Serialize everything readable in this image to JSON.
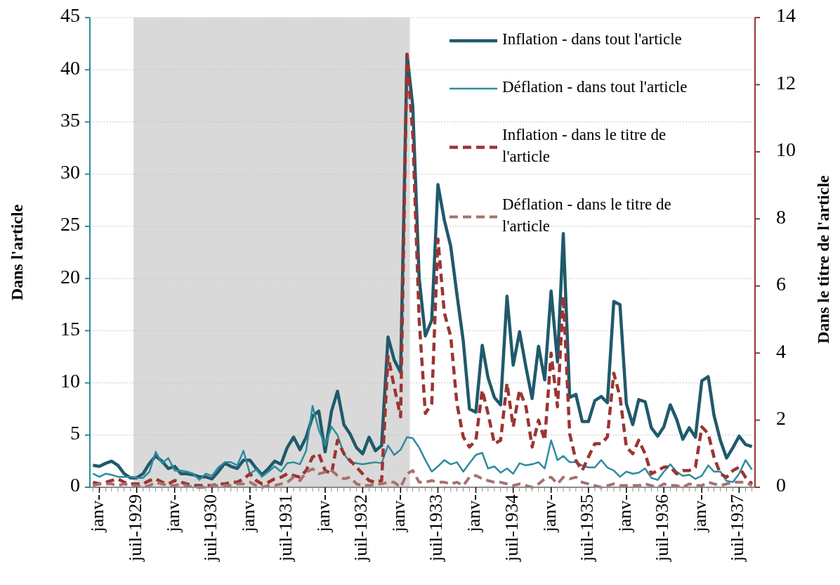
{
  "chart_data": {
    "type": "line",
    "ylabel": "Dans l'article",
    "y2label": "Dans le titre de l'article",
    "x": [
      "1928-12",
      "1929-01",
      "1929-02",
      "1929-03",
      "1929-04",
      "1929-05",
      "1929-06",
      "1929-07",
      "1929-08",
      "1929-09",
      "1929-10",
      "1929-11",
      "1929-12",
      "1930-01",
      "1930-02",
      "1930-03",
      "1930-04",
      "1930-05",
      "1930-06",
      "1930-07",
      "1930-08",
      "1930-09",
      "1930-10",
      "1930-11",
      "1930-12",
      "1931-01",
      "1931-02",
      "1931-03",
      "1931-04",
      "1931-05",
      "1931-06",
      "1931-07",
      "1931-08",
      "1931-09",
      "1931-10",
      "1931-11",
      "1931-12",
      "1932-01",
      "1932-02",
      "1932-03",
      "1932-04",
      "1932-05",
      "1932-06",
      "1932-07",
      "1932-08",
      "1932-09",
      "1932-10",
      "1932-11",
      "1932-12",
      "1933-01",
      "1933-02",
      "1933-03",
      "1933-04",
      "1933-05",
      "1933-06",
      "1933-07",
      "1933-08",
      "1933-09",
      "1933-10",
      "1933-11",
      "1933-12",
      "1934-01",
      "1934-02",
      "1934-03",
      "1934-04",
      "1934-05",
      "1934-06",
      "1934-07",
      "1934-08",
      "1934-09",
      "1934-10",
      "1934-11",
      "1934-12",
      "1935-01",
      "1935-02",
      "1935-03",
      "1935-04",
      "1935-05",
      "1935-06",
      "1935-07",
      "1935-08",
      "1935-09",
      "1935-10",
      "1935-11",
      "1935-12",
      "1936-01",
      "1936-02",
      "1936-03",
      "1936-04",
      "1936-05",
      "1936-06",
      "1936-07",
      "1936-08",
      "1936-09",
      "1936-10",
      "1936-11",
      "1936-12",
      "1937-01",
      "1937-02",
      "1937-03",
      "1937-04",
      "1937-05",
      "1937-06",
      "1937-07",
      "1937-08",
      "1937-09"
    ],
    "series": [
      {
        "name": "Inflation - dans tout l'article",
        "color": "#1f5a6b",
        "line_style": "solid",
        "values": [
          2.1,
          2.0,
          2.3,
          2.5,
          2.1,
          1.3,
          0.9,
          0.9,
          1.3,
          2.3,
          3.0,
          2.5,
          1.8,
          2.0,
          1.3,
          1.3,
          1.2,
          1.0,
          1.0,
          0.8,
          1.5,
          2.3,
          2.0,
          1.8,
          2.6,
          2.6,
          1.8,
          1.2,
          1.8,
          2.5,
          2.2,
          3.8,
          4.8,
          3.6,
          4.8,
          6.8,
          7.3,
          3.4,
          7.3,
          9.2,
          6.0,
          5.1,
          3.8,
          3.2,
          4.8,
          3.5,
          4.0,
          14.4,
          12.2,
          11.0,
          41.5,
          36.5,
          20,
          14.5,
          16,
          29,
          25.6,
          23.1,
          18.5,
          14,
          7.5,
          7.2,
          13.6,
          10.5,
          8.6,
          7.9,
          18.3,
          11.7,
          14.9,
          11.5,
          8.5,
          13.5,
          10.3,
          18.8,
          12.0,
          24.3,
          8.6,
          8.9,
          6.3,
          6.3,
          8.3,
          8.7,
          8.1,
          17.8,
          17.5,
          8.0,
          6.0,
          8.4,
          8.2,
          5.7,
          4.9,
          5.8,
          7.9,
          6.5,
          4.6,
          5.7,
          4.8,
          10.2,
          10.6,
          6.9,
          4.5,
          2.8,
          3.8,
          4.9,
          4.1,
          3.9
        ]
      },
      {
        "name": "Déflation - dans tout l'article",
        "color": "#2e8ba0",
        "line_style": "solid",
        "values": [
          1.3,
          1.0,
          1.3,
          1.2,
          1.0,
          1.0,
          1.0,
          0.9,
          0.9,
          1.5,
          3.4,
          2.3,
          2.8,
          1.6,
          1.6,
          1.5,
          1.3,
          0.7,
          1.3,
          1.1,
          1.9,
          2.4,
          2.4,
          2.1,
          3.5,
          1.3,
          1.7,
          1.0,
          1.5,
          2.0,
          1.5,
          2.3,
          2.4,
          2.2,
          3.5,
          7.8,
          5.5,
          4.0,
          5.8,
          5.0,
          3.2,
          2.4,
          2.3,
          2.2,
          2.3,
          2.4,
          2.3,
          4.0,
          3.1,
          3.6,
          4.8,
          4.7,
          3.8,
          2.6,
          1.5,
          2.0,
          2.6,
          2.2,
          2.4,
          1.5,
          2.3,
          3.1,
          3.3,
          1.8,
          2.0,
          1.4,
          1.8,
          1.3,
          2.3,
          2.1,
          2.2,
          2.4,
          1.8,
          4.5,
          2.6,
          3.0,
          2.4,
          2.4,
          2.1,
          1.9,
          1.9,
          2.6,
          1.9,
          1.6,
          1.0,
          1.5,
          1.3,
          1.4,
          1.8,
          0.9,
          0.7,
          1.5,
          2.2,
          1.5,
          1.1,
          1.2,
          0.8,
          1.1,
          2.1,
          1.5,
          1.5,
          0.6,
          0.5,
          1.3,
          2.6,
          1.7
        ]
      },
      {
        "name": "Inflation - dans le titre de l'article",
        "color": "#9b3533",
        "line_style": "dashed",
        "axis": "y2",
        "values": [
          0.15,
          0.1,
          0.15,
          0.2,
          0.25,
          0.15,
          0.1,
          0.1,
          0.1,
          0.2,
          0.25,
          0.15,
          0.1,
          0.2,
          0.15,
          0.1,
          0.05,
          0.05,
          0.05,
          0.05,
          0.1,
          0.1,
          0.15,
          0.15,
          0.25,
          0.4,
          0.2,
          0.1,
          0.15,
          0.25,
          0.3,
          0.4,
          0.35,
          0.3,
          0.5,
          0.9,
          1.0,
          0.5,
          0.4,
          1.4,
          1.0,
          0.8,
          0.6,
          0.4,
          0.2,
          0.15,
          0.2,
          3.9,
          3.0,
          2.1,
          12.9,
          10.5,
          5.0,
          2.2,
          2.5,
          7.4,
          5.2,
          4.5,
          2.5,
          1.5,
          1.2,
          1.4,
          2.9,
          2.2,
          1.3,
          1.4,
          3.1,
          1.8,
          2.9,
          2.4,
          1.2,
          2.0,
          1.4,
          4.0,
          2.4,
          5.7,
          1.6,
          0.8,
          0.5,
          0.9,
          1.3,
          1.3,
          1.5,
          3.4,
          2.7,
          1.2,
          1.0,
          1.4,
          1.0,
          0.4,
          0.5,
          0.6,
          0.6,
          0.4,
          0.5,
          0.5,
          0.6,
          1.8,
          1.6,
          0.9,
          0.4,
          0.3,
          0.5,
          0.6,
          0.3,
          0.1
        ]
      },
      {
        "name": "Déflation - dans le titre de l'article",
        "color": "#a87070",
        "line_style": "dashed",
        "axis": "y2",
        "values": [
          0.05,
          0.1,
          0.1,
          0.1,
          0.05,
          0.1,
          0.05,
          0.05,
          0.0,
          0.05,
          0.15,
          0.1,
          0.05,
          0.05,
          0.1,
          0.05,
          0.0,
          0.0,
          0.0,
          0.05,
          0.05,
          0.05,
          0.05,
          0.1,
          0.1,
          0.15,
          0.05,
          0.0,
          0.05,
          0.05,
          0.1,
          0.15,
          0.3,
          0.2,
          0.45,
          0.55,
          0.4,
          0.45,
          0.5,
          0.35,
          0.25,
          0.3,
          0.1,
          0.05,
          0.05,
          0.1,
          0.1,
          0.15,
          0.15,
          0.0,
          0.4,
          0.5,
          0.15,
          0.15,
          0.2,
          0.15,
          0.15,
          0.1,
          0.15,
          0.05,
          0.3,
          0.35,
          0.25,
          0.2,
          0.15,
          0.15,
          0.1,
          0.05,
          0.1,
          0.05,
          0.0,
          0.1,
          0.25,
          0.3,
          0.1,
          0.3,
          0.25,
          0.3,
          0.15,
          0.1,
          0.05,
          0.0,
          0.05,
          0.1,
          0.05,
          0.05,
          0.05,
          0.05,
          0.1,
          0.05,
          0.0,
          0.1,
          0.05,
          0.05,
          0.0,
          0.1,
          0.05,
          0.05,
          0.15,
          0.1,
          0.05,
          0.1,
          0.15,
          0.15,
          0.15,
          0.05
        ]
      }
    ],
    "xlim": [
      "1928-11-16",
      "1937-09-16"
    ],
    "xticks": [
      {
        "value": "1929-01",
        "label": "janv-"
      },
      {
        "value": "1929-07",
        "label": "juil-1929"
      },
      {
        "value": "1930-01",
        "label": "janv-"
      },
      {
        "value": "1930-07",
        "label": "juil-1930"
      },
      {
        "value": "1931-01",
        "label": "janv-"
      },
      {
        "value": "1931-07",
        "label": "juil-1931"
      },
      {
        "value": "1932-01",
        "label": "janv-"
      },
      {
        "value": "1932-07",
        "label": "juil-1932"
      },
      {
        "value": "1933-01",
        "label": "janv-"
      },
      {
        "value": "1933-07",
        "label": "juil-1933"
      },
      {
        "value": "1934-01",
        "label": "janv-"
      },
      {
        "value": "1934-07",
        "label": "juil-1934"
      },
      {
        "value": "1935-01",
        "label": "janv-"
      },
      {
        "value": "1935-07",
        "label": "juil-1935"
      },
      {
        "value": "1936-01",
        "label": "janv-"
      },
      {
        "value": "1936-07",
        "label": "juil-1936"
      },
      {
        "value": "1937-01",
        "label": "janv-"
      },
      {
        "value": "1937-07",
        "label": "juil-1937"
      }
    ],
    "ylim": [
      0,
      45
    ],
    "yticks": [
      0,
      5,
      10,
      15,
      20,
      25,
      30,
      35,
      40,
      45
    ],
    "y2lim": [
      0,
      14
    ],
    "y2ticks": [
      0,
      2,
      4,
      6,
      8,
      10,
      12,
      14
    ],
    "bands": [
      {
        "axis": "x",
        "from": "1929-06-16",
        "to": "1933-02-15",
        "color": "#d9d9d9"
      }
    ],
    "grid": "y",
    "legend": "top right"
  }
}
